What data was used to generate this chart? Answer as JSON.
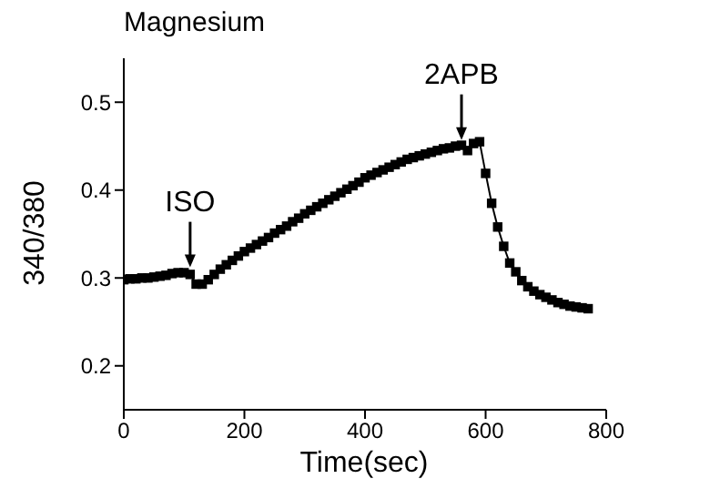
{
  "chart_data": {
    "type": "line",
    "title": "Magnesium",
    "xlabel": "Time(sec)",
    "ylabel": "340/380",
    "x": [
      0,
      10,
      20,
      30,
      40,
      50,
      60,
      70,
      80,
      90,
      100,
      110,
      120,
      130,
      140,
      150,
      160,
      170,
      180,
      190,
      200,
      210,
      220,
      230,
      240,
      250,
      260,
      270,
      280,
      290,
      300,
      310,
      320,
      330,
      340,
      350,
      360,
      370,
      380,
      390,
      400,
      410,
      420,
      430,
      440,
      450,
      460,
      470,
      480,
      490,
      500,
      510,
      520,
      530,
      540,
      550,
      560,
      570,
      580,
      590,
      600,
      610,
      620,
      630,
      640,
      650,
      660,
      670,
      680,
      690,
      700,
      710,
      720,
      730,
      740,
      750,
      760,
      770
    ],
    "series": [
      {
        "color": "#000000",
        "values": [
          0.298,
          0.299,
          0.299,
          0.3,
          0.3,
          0.301,
          0.302,
          0.303,
          0.305,
          0.306,
          0.306,
          0.304,
          0.293,
          0.293,
          0.298,
          0.304,
          0.31,
          0.315,
          0.32,
          0.325,
          0.33,
          0.334,
          0.338,
          0.342,
          0.346,
          0.351,
          0.355,
          0.359,
          0.364,
          0.368,
          0.373,
          0.377,
          0.381,
          0.385,
          0.389,
          0.393,
          0.397,
          0.401,
          0.405,
          0.409,
          0.414,
          0.417,
          0.42,
          0.423,
          0.426,
          0.429,
          0.432,
          0.435,
          0.437,
          0.439,
          0.441,
          0.443,
          0.445,
          0.447,
          0.448,
          0.45,
          0.451,
          0.445,
          0.453,
          0.455,
          0.419,
          0.385,
          0.358,
          0.336,
          0.317,
          0.307,
          0.297,
          0.29,
          0.285,
          0.281,
          0.278,
          0.275,
          0.272,
          0.27,
          0.268,
          0.267,
          0.266,
          0.265
        ]
      }
    ],
    "xlim": [
      0,
      800
    ],
    "xticks": [
      0,
      200,
      400,
      600,
      800
    ],
    "ylim": [
      0.15,
      0.55
    ],
    "yticks": [
      0.2,
      0.3,
      0.4,
      0.5
    ],
    "annotations": [
      {
        "text": "ISO",
        "x": 110,
        "y": 0.31
      },
      {
        "text": "2APB",
        "x": 560,
        "y": 0.455
      }
    ],
    "grid": false,
    "legend": false,
    "marker": "square",
    "line_style": "solid"
  }
}
